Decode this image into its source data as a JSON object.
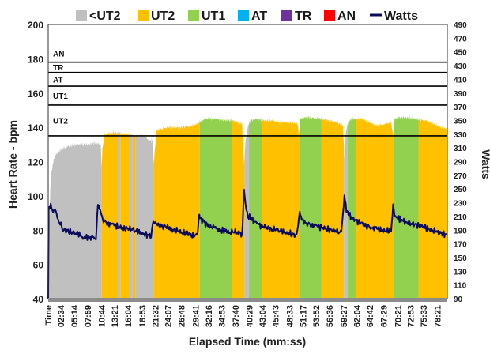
{
  "chart_data": {
    "type": "area",
    "title": "",
    "xlabel": "Elapsed Time (mm:ss)",
    "ylabel_left": "Heart Rate - bpm",
    "ylabel_right": "Watts",
    "ylim_left": [
      40,
      200
    ],
    "yticks_left": [
      40,
      60,
      80,
      100,
      120,
      140,
      160,
      180,
      200
    ],
    "ylim_right": [
      90,
      490
    ],
    "yticks_right": [
      90,
      110,
      130,
      150,
      170,
      190,
      210,
      230,
      250,
      270,
      290,
      310,
      330,
      350,
      370,
      390,
      410,
      430,
      450,
      470,
      490
    ],
    "x_range_minutes": [
      0,
      80.3
    ],
    "x_tick_labels": [
      "Time",
      "02:34",
      "05:14",
      "07:59",
      "10:44",
      "13:21",
      "16:04",
      "18:53",
      "21:32",
      "24:07",
      "26:48",
      "29:41",
      "32:16",
      "34:53",
      "37:40",
      "40:29",
      "43:04",
      "45:43",
      "48:33",
      "51:17",
      "53:52",
      "56:36",
      "59:27",
      "62:04",
      "64:42",
      "67:29",
      "70:21",
      "72:53",
      "75:33",
      "78:21"
    ],
    "legend": [
      {
        "name": "<UT2",
        "color": "#c0c0c0",
        "kind": "area"
      },
      {
        "name": "UT2",
        "color": "#ffc000",
        "kind": "area"
      },
      {
        "name": "UT1",
        "color": "#92d050",
        "kind": "area"
      },
      {
        "name": "AT",
        "color": "#00b0f0",
        "kind": "area"
      },
      {
        "name": "TR",
        "color": "#7030a0",
        "kind": "area"
      },
      {
        "name": "AN",
        "color": "#ff0000",
        "kind": "area"
      },
      {
        "name": "Watts",
        "color": "#0c0c5c",
        "kind": "line"
      }
    ],
    "zone_thresholds": [
      {
        "label": "UT2",
        "bpm": 135
      },
      {
        "label": "UT1",
        "bpm": 153
      },
      {
        "label": "AT",
        "bpm": 164
      },
      {
        "label": "TR",
        "bpm": 172
      },
      {
        "label": "AN",
        "bpm": 178
      }
    ],
    "heart_rate_bpm": [
      [
        0,
        44
      ],
      [
        0.2,
        80
      ],
      [
        0.5,
        110
      ],
      [
        1,
        120
      ],
      [
        1.5,
        124
      ],
      [
        2.5,
        127
      ],
      [
        4,
        129
      ],
      [
        6,
        130
      ],
      [
        8,
        130
      ],
      [
        9.5,
        131
      ],
      [
        10.6,
        130
      ],
      [
        10.75,
        115
      ],
      [
        10.9,
        128
      ],
      [
        11.4,
        136
      ],
      [
        13,
        137
      ],
      [
        16,
        136
      ],
      [
        18,
        135
      ],
      [
        19.5,
        135
      ],
      [
        20,
        133
      ],
      [
        21.1,
        132
      ],
      [
        21.25,
        117
      ],
      [
        21.4,
        125
      ],
      [
        21.8,
        138
      ],
      [
        24,
        140
      ],
      [
        27,
        140
      ],
      [
        29,
        141
      ],
      [
        30,
        142
      ],
      [
        30.8,
        144
      ],
      [
        32,
        145
      ],
      [
        34,
        145
      ],
      [
        35.5,
        144
      ],
      [
        37,
        144
      ],
      [
        38.2,
        143
      ],
      [
        39,
        142
      ],
      [
        39.4,
        118
      ],
      [
        39.7,
        132
      ],
      [
        40.2,
        141
      ],
      [
        40.7,
        144
      ],
      [
        42,
        145
      ],
      [
        43.5,
        144
      ],
      [
        45,
        144
      ],
      [
        46,
        143
      ],
      [
        48,
        143
      ],
      [
        50.2,
        142
      ],
      [
        50.45,
        135
      ],
      [
        50.7,
        145
      ],
      [
        52,
        146
      ],
      [
        55,
        145
      ],
      [
        56.5,
        144
      ],
      [
        58,
        143
      ],
      [
        59.3,
        141
      ],
      [
        59.6,
        122
      ],
      [
        59.9,
        138
      ],
      [
        60.4,
        143
      ],
      [
        61,
        145
      ],
      [
        63,
        145
      ],
      [
        64.5,
        143
      ],
      [
        66,
        141
      ],
      [
        68,
        142
      ],
      [
        69,
        143
      ],
      [
        69.4,
        135
      ],
      [
        69.7,
        145
      ],
      [
        71,
        146
      ],
      [
        74,
        145
      ],
      [
        76,
        144
      ],
      [
        77.5,
        142
      ],
      [
        79,
        140
      ],
      [
        80.3,
        139
      ]
    ],
    "heart_rate_zone_fill": [
      {
        "zone": "<UT2",
        "from": "00:00",
        "to": "10:41"
      },
      {
        "zone": "UT2",
        "from": "10:41",
        "to": "14:00"
      },
      {
        "zone": "<UT2",
        "from": "14:00",
        "to": "14:30"
      },
      {
        "zone": "UT2",
        "from": "14:30",
        "to": "16:30"
      },
      {
        "zone": "<UT2",
        "from": "16:30",
        "to": "17:00"
      },
      {
        "zone": "UT2",
        "from": "17:00",
        "to": "17:30"
      },
      {
        "zone": "<UT2",
        "from": "17:30",
        "to": "21:12"
      },
      {
        "zone": "UT2",
        "from": "21:12",
        "to": "30:30"
      },
      {
        "zone": "UT1",
        "from": "30:30",
        "to": "37:00"
      },
      {
        "zone": "UT2",
        "from": "37:00",
        "to": "39:30"
      },
      {
        "zone": "<UT2",
        "from": "39:30",
        "to": "40:24"
      },
      {
        "zone": "UT1",
        "from": "40:24",
        "to": "43:00"
      },
      {
        "zone": "UT2",
        "from": "43:00",
        "to": "50:30"
      },
      {
        "zone": "UT1",
        "from": "50:30",
        "to": "55:00"
      },
      {
        "zone": "UT2",
        "from": "55:00",
        "to": "59:30"
      },
      {
        "zone": "<UT2",
        "from": "59:30",
        "to": "60:15"
      },
      {
        "zone": "UT1",
        "from": "60:15",
        "to": "62:00"
      },
      {
        "zone": "UT2",
        "from": "62:00",
        "to": "69:30"
      },
      {
        "zone": "UT1",
        "from": "69:30",
        "to": "74:30"
      },
      {
        "zone": "UT2",
        "from": "74:30",
        "to": "80:18"
      }
    ],
    "watts_right_axis": [
      [
        0,
        90
      ],
      [
        0.1,
        220
      ],
      [
        0.5,
        225
      ],
      [
        1,
        215
      ],
      [
        1.5,
        220
      ],
      [
        2,
        205
      ],
      [
        3,
        192
      ],
      [
        4,
        188
      ],
      [
        5,
        186
      ],
      [
        6,
        184
      ],
      [
        7,
        180
      ],
      [
        8,
        178
      ],
      [
        9,
        180
      ],
      [
        9.6,
        176
      ],
      [
        10,
        228
      ],
      [
        10.3,
        222
      ],
      [
        10.6,
        218
      ],
      [
        11,
        205
      ],
      [
        12,
        200
      ],
      [
        13,
        198
      ],
      [
        14,
        196
      ],
      [
        15,
        192
      ],
      [
        16,
        193
      ],
      [
        17,
        190
      ],
      [
        18,
        188
      ],
      [
        19,
        185
      ],
      [
        20,
        183
      ],
      [
        20.7,
        180
      ],
      [
        21,
        198
      ],
      [
        21.4,
        202
      ],
      [
        22,
        198
      ],
      [
        23,
        196
      ],
      [
        24,
        195
      ],
      [
        25,
        190
      ],
      [
        26,
        189
      ],
      [
        27,
        186
      ],
      [
        28,
        185
      ],
      [
        29,
        182
      ],
      [
        30,
        183
      ],
      [
        30.4,
        215
      ],
      [
        30.8,
        205
      ],
      [
        31.5,
        200
      ],
      [
        32.5,
        196
      ],
      [
        33.5,
        193
      ],
      [
        34.5,
        190
      ],
      [
        35.5,
        189
      ],
      [
        36.5,
        187
      ],
      [
        37.5,
        188
      ],
      [
        38.5,
        185
      ],
      [
        39,
        180
      ],
      [
        39.4,
        250
      ],
      [
        39.7,
        225
      ],
      [
        40.2,
        210
      ],
      [
        41,
        205
      ],
      [
        42,
        200
      ],
      [
        43,
        196
      ],
      [
        44,
        194
      ],
      [
        45,
        192
      ],
      [
        46,
        190
      ],
      [
        47,
        188
      ],
      [
        48,
        186
      ],
      [
        49,
        184
      ],
      [
        50,
        182
      ],
      [
        50.6,
        215
      ],
      [
        51,
        205
      ],
      [
        52,
        200
      ],
      [
        53,
        198
      ],
      [
        54,
        196
      ],
      [
        55,
        194
      ],
      [
        56,
        192
      ],
      [
        57,
        190
      ],
      [
        58,
        188
      ],
      [
        59,
        186
      ],
      [
        59.6,
        240
      ],
      [
        60,
        220
      ],
      [
        61,
        208
      ],
      [
        62,
        204
      ],
      [
        63,
        200
      ],
      [
        64,
        197
      ],
      [
        65,
        194
      ],
      [
        66,
        192
      ],
      [
        67,
        190
      ],
      [
        68,
        188
      ],
      [
        69,
        190
      ],
      [
        69.4,
        225
      ],
      [
        69.8,
        210
      ],
      [
        71,
        205
      ],
      [
        72,
        202
      ],
      [
        73,
        200
      ],
      [
        74,
        198
      ],
      [
        75,
        196
      ],
      [
        76,
        194
      ],
      [
        77,
        190
      ],
      [
        78,
        188
      ],
      [
        79,
        185
      ],
      [
        80.3,
        183
      ]
    ]
  }
}
